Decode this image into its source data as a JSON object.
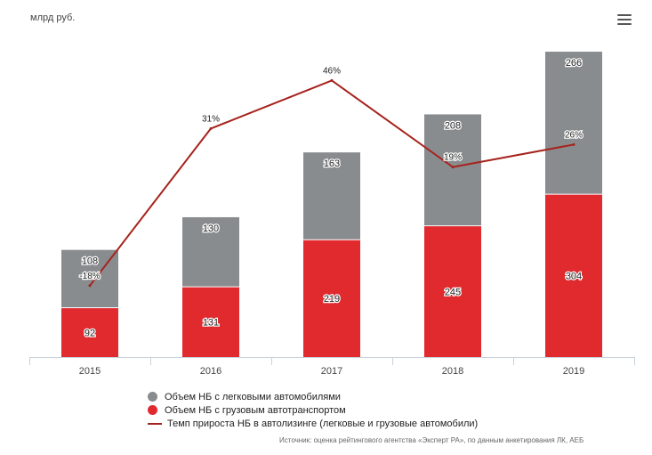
{
  "unit_label": "млрд руб.",
  "menu": {
    "icon": "hamburger-menu-icon"
  },
  "colors": {
    "cars": "#898C8E",
    "trucks": "#E02A2E",
    "growth": "#A6231D",
    "axis": "#C9D2DB",
    "label_text": "#222222"
  },
  "legend": {
    "cars": "Объем НБ с легковыми автомобилями",
    "trucks": "Объем НБ с грузовым автотранспортом",
    "growth": "Темп прироста НБ в автолизинге (легковые и грузовые автомобили)"
  },
  "source": "Источник: оценка рейтингового агентства «Эксперт РА», по данным анкетирования ЛК, АЕБ",
  "chart_data": {
    "type": "bar",
    "stacked": true,
    "categories": [
      "2015",
      "2016",
      "2017",
      "2018",
      "2019"
    ],
    "ylabel": "млрд руб.",
    "ylim": [
      0,
      600
    ],
    "series": [
      {
        "name": "Объем НБ с грузовым автотранспортом",
        "values": [
          92,
          131,
          219,
          245,
          304
        ]
      },
      {
        "name": "Объем НБ с легковыми автомобилями",
        "values": [
          108,
          130,
          163,
          208,
          266
        ]
      }
    ],
    "line_series": {
      "name": "Темп прироста НБ в автолизинге (легковые и грузовые автомобили)",
      "values": [
        -18,
        31,
        46,
        19,
        26
      ],
      "labels": [
        "-18%",
        "31%",
        "46%",
        "19%",
        "26%"
      ],
      "ylim": [
        -40,
        60
      ]
    }
  }
}
